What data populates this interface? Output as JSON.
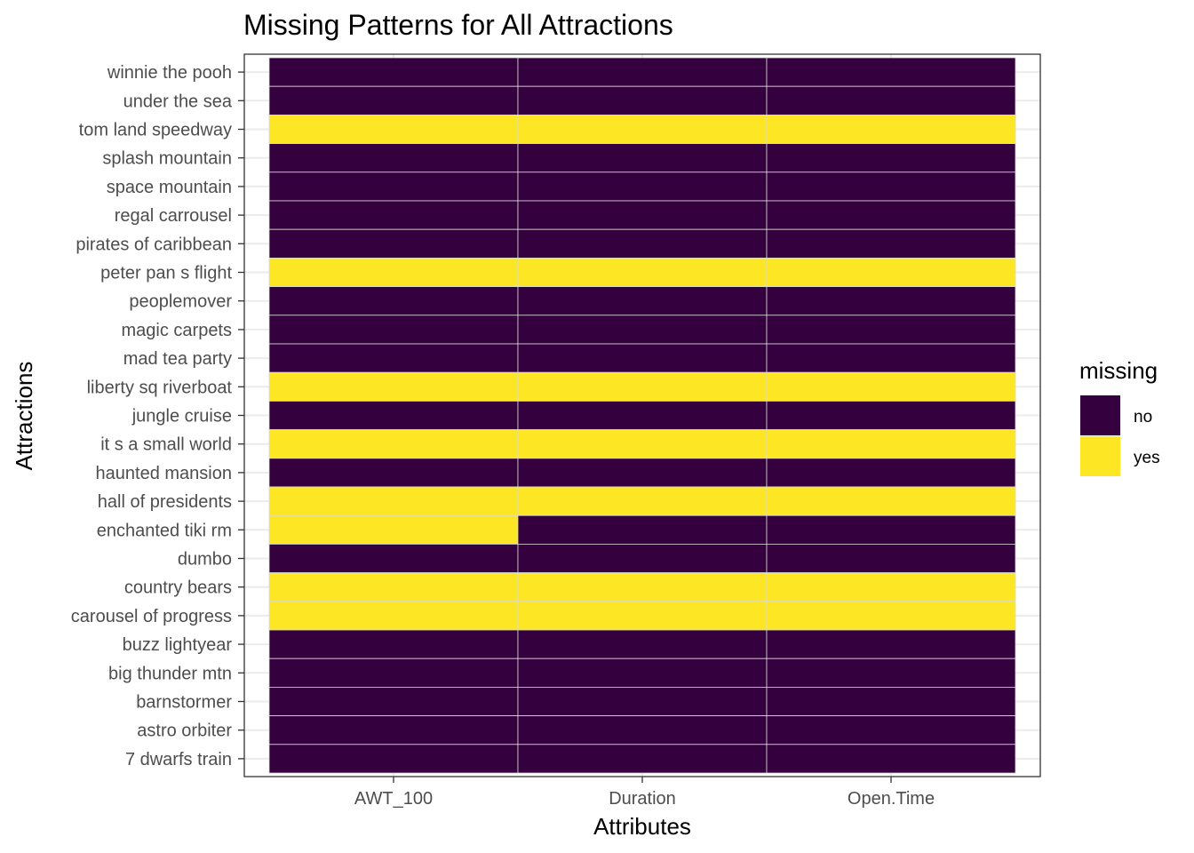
{
  "chart_data": {
    "type": "heatmap",
    "title": "Missing Patterns for All Attractions",
    "xlabel": "Attributes",
    "ylabel": "Attractions",
    "x_categories": [
      "AWT_100",
      "Duration",
      "Open.Time"
    ],
    "y_categories": [
      "winnie the pooh",
      "under the sea",
      "tom land speedway",
      "splash mountain",
      "space mountain",
      "regal carrousel",
      "pirates of caribbean",
      "peter pan s flight",
      "peoplemover",
      "magic carpets",
      "mad tea party",
      "liberty sq riverboat",
      "jungle cruise",
      "it s a small world",
      "haunted mansion",
      "hall of presidents",
      "enchanted tiki rm",
      "dumbo",
      "country bears",
      "carousel of progress",
      "buzz lightyear",
      "big thunder mtn",
      "barnstormer",
      "astro orbiter",
      "7 dwarfs train"
    ],
    "values": [
      [
        "no",
        "no",
        "no"
      ],
      [
        "no",
        "no",
        "no"
      ],
      [
        "yes",
        "yes",
        "yes"
      ],
      [
        "no",
        "no",
        "no"
      ],
      [
        "no",
        "no",
        "no"
      ],
      [
        "no",
        "no",
        "no"
      ],
      [
        "no",
        "no",
        "no"
      ],
      [
        "yes",
        "yes",
        "yes"
      ],
      [
        "no",
        "no",
        "no"
      ],
      [
        "no",
        "no",
        "no"
      ],
      [
        "no",
        "no",
        "no"
      ],
      [
        "yes",
        "yes",
        "yes"
      ],
      [
        "no",
        "no",
        "no"
      ],
      [
        "yes",
        "yes",
        "yes"
      ],
      [
        "no",
        "no",
        "no"
      ],
      [
        "yes",
        "yes",
        "yes"
      ],
      [
        "yes",
        "no",
        "no"
      ],
      [
        "no",
        "no",
        "no"
      ],
      [
        "yes",
        "yes",
        "yes"
      ],
      [
        "yes",
        "yes",
        "yes"
      ],
      [
        "no",
        "no",
        "no"
      ],
      [
        "no",
        "no",
        "no"
      ],
      [
        "no",
        "no",
        "no"
      ],
      [
        "no",
        "no",
        "no"
      ],
      [
        "no",
        "no",
        "no"
      ]
    ],
    "legend": {
      "title": "missing",
      "placement": "right",
      "entries": [
        {
          "label": "no",
          "color": "#35003E"
        },
        {
          "label": "yes",
          "color": "#FDE725"
        }
      ]
    },
    "grid": true,
    "colors": {
      "no": "#35003E",
      "yes": "#FDE725",
      "panel_border": "#333333",
      "grid": "#ebebeb",
      "tile_border": "#d9d9d9"
    }
  }
}
